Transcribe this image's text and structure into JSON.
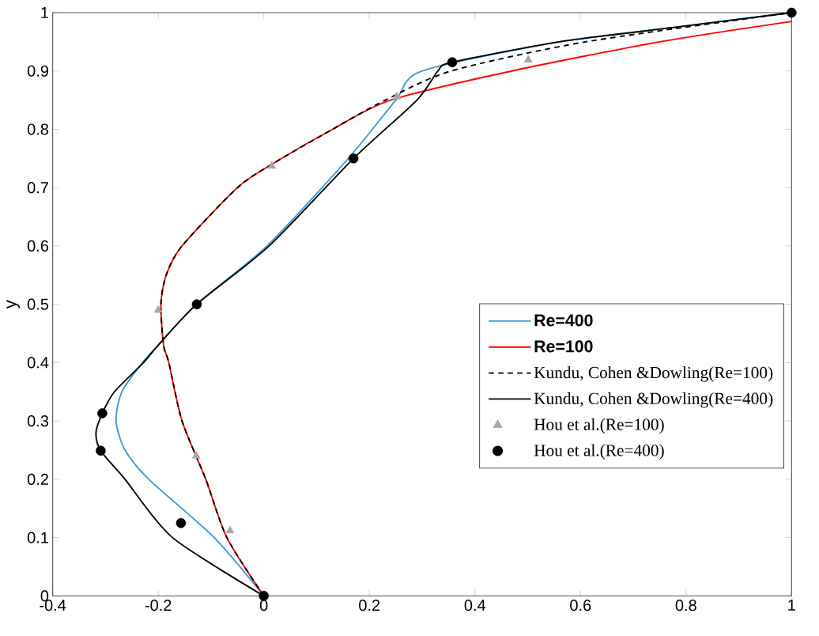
{
  "chart_data": {
    "type": "line",
    "ylabel": "y",
    "xlim": [
      -0.4,
      1
    ],
    "ylim": [
      0,
      1
    ],
    "xticks": [
      -0.4,
      -0.2,
      0,
      0.2,
      0.4,
      0.6,
      0.8,
      1
    ],
    "yticks": [
      0,
      0.1,
      0.2,
      0.3,
      0.4,
      0.5,
      0.6,
      0.7,
      0.8,
      0.9,
      1
    ],
    "grid": false,
    "legend": "center right",
    "series": [
      {
        "name": "Re=400",
        "color": "#3a9ad9",
        "line_style": "solid",
        "marker": "none",
        "x": [
          0,
          -0.094,
          -0.218,
          -0.263,
          -0.28,
          -0.269,
          -0.23,
          -0.2,
          -0.128,
          0.006,
          0.16,
          0.25,
          0.3,
          0.56,
          0.78,
          1
        ],
        "values": [
          0,
          0.1,
          0.2,
          0.25,
          0.3,
          0.35,
          0.4,
          0.43,
          0.5,
          0.6,
          0.75,
          0.85,
          0.9,
          0.95,
          0.975,
          1
        ]
      },
      {
        "name": "Re=100",
        "color": "#ff0000",
        "line_style": "solid",
        "marker": "none",
        "x": [
          0,
          -0.07,
          -0.11,
          -0.155,
          -0.18,
          -0.19,
          -0.195,
          -0.185,
          -0.155,
          -0.05,
          0.015,
          0.13,
          0.24,
          0.47,
          0.75,
          1
        ],
        "values": [
          0,
          0.1,
          0.2,
          0.3,
          0.4,
          0.43,
          0.5,
          0.55,
          0.6,
          0.7,
          0.74,
          0.8,
          0.85,
          0.9,
          0.95,
          0.985
        ]
      },
      {
        "name": "Kundu, Cohen &Dowling(Re=100)",
        "color": "#000000",
        "line_style": "dashed",
        "marker": "none",
        "x": [
          0,
          -0.07,
          -0.11,
          -0.155,
          -0.18,
          -0.19,
          -0.195,
          -0.185,
          -0.155,
          -0.05,
          0.015,
          0.13,
          0.23,
          0.355,
          0.61,
          1
        ],
        "values": [
          0,
          0.1,
          0.2,
          0.3,
          0.4,
          0.43,
          0.5,
          0.55,
          0.6,
          0.7,
          0.74,
          0.8,
          0.85,
          0.9,
          0.95,
          1
        ]
      },
      {
        "name": "Kundu, Cohen &Dowling(Re=400)",
        "color": "#000000",
        "line_style": "solid",
        "marker": "none",
        "x": [
          0,
          -0.173,
          -0.263,
          -0.309,
          -0.318,
          -0.306,
          -0.283,
          -0.228,
          -0.2,
          -0.127,
          0.01,
          0.17,
          0.29,
          0.33,
          0.357,
          0.56,
          0.78,
          1
        ],
        "values": [
          0,
          0.1,
          0.2,
          0.249,
          0.28,
          0.313,
          0.35,
          0.4,
          0.43,
          0.5,
          0.6,
          0.75,
          0.85,
          0.9,
          0.915,
          0.95,
          0.975,
          1
        ]
      },
      {
        "name": "Hou et al.(Re=100)",
        "type": "scatter",
        "color": "#a8a8a8",
        "marker": "triangle",
        "x": [
          -0.064,
          -0.128,
          -0.2,
          0.015,
          0.252,
          0.501
        ],
        "values": [
          0.112,
          0.24,
          0.49,
          0.737,
          0.856,
          0.919
        ]
      },
      {
        "name": "Hou et al.(Re=400)",
        "type": "scatter",
        "color": "#000000",
        "marker": "circle",
        "x": [
          0,
          -0.157,
          -0.309,
          -0.306,
          -0.127,
          0.17,
          0.357,
          1
        ],
        "values": [
          0,
          0.125,
          0.249,
          0.313,
          0.5,
          0.75,
          0.915,
          1
        ]
      }
    ]
  }
}
